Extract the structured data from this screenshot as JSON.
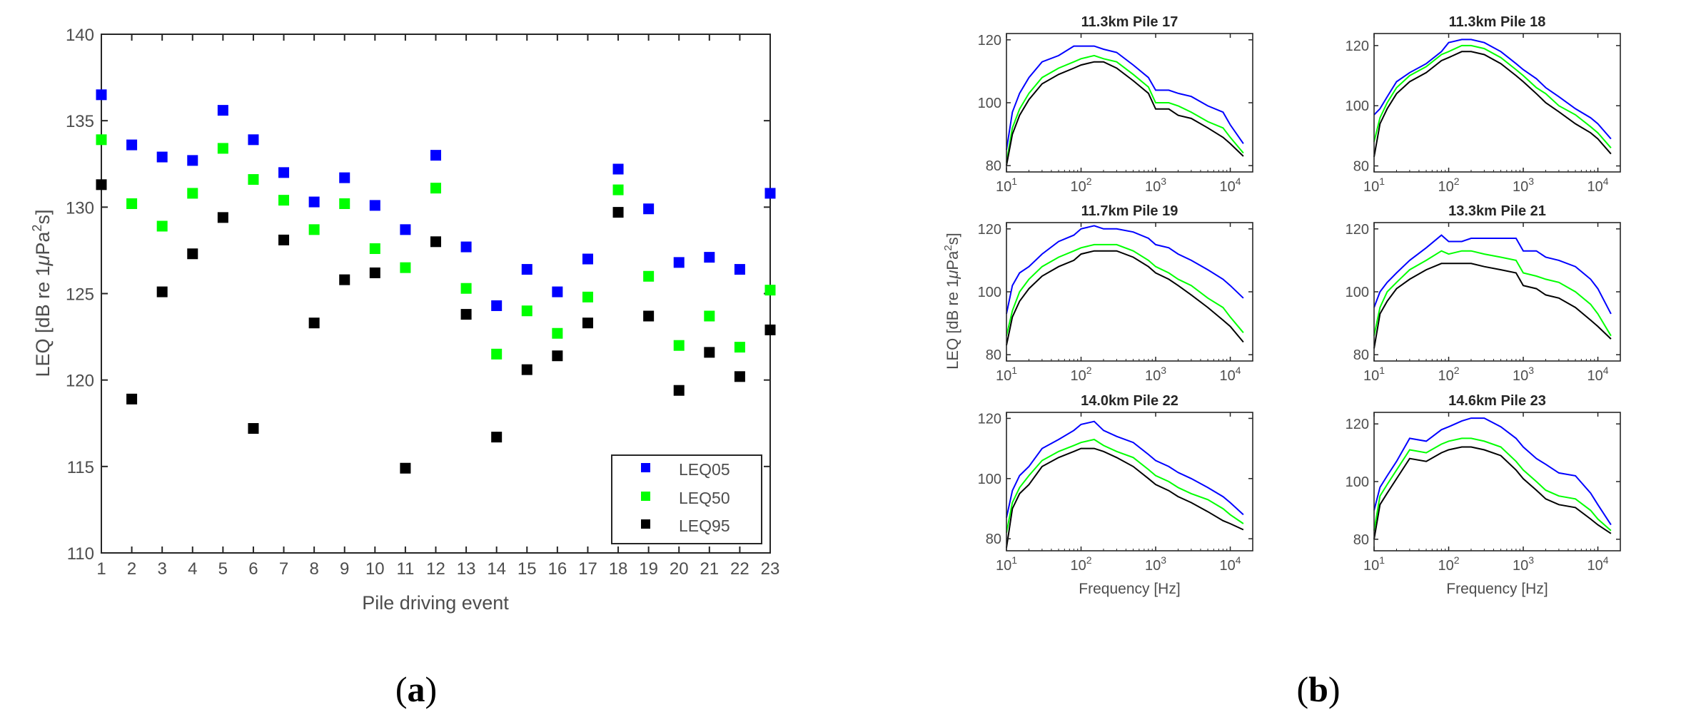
{
  "chart_data": [
    {
      "id": "a",
      "type": "scatter",
      "panel_label": "(a)",
      "panel_letter": "a",
      "xlabel": "Pile driving event",
      "ylabel": "LEQ [dB re 1μPa²s]",
      "ylabel_parts": {
        "pre": "LEQ [dB re 1",
        "mu": "μ",
        "mid": "Pa",
        "sup": "2",
        "post": "s]"
      },
      "xlim": [
        1,
        23
      ],
      "ylim": [
        110,
        140
      ],
      "xticks": [
        1,
        2,
        3,
        4,
        5,
        6,
        7,
        8,
        9,
        10,
        11,
        12,
        13,
        14,
        15,
        16,
        17,
        18,
        19,
        20,
        21,
        22,
        23
      ],
      "yticks": [
        110,
        115,
        120,
        125,
        130,
        135,
        140
      ],
      "legend_position": "bottom-right",
      "series": [
        {
          "name": "LEQ05",
          "color": "#0000ff",
          "x": [
            1,
            2,
            3,
            4,
            5,
            6,
            7,
            8,
            9,
            10,
            11,
            12,
            13,
            14,
            15,
            16,
            17,
            18,
            19,
            20,
            21,
            22,
            23
          ],
          "y": [
            136.5,
            133.6,
            132.9,
            132.7,
            135.6,
            133.9,
            132.0,
            130.3,
            131.7,
            130.1,
            128.7,
            133.0,
            127.7,
            124.3,
            126.4,
            125.1,
            127.0,
            132.2,
            129.9,
            126.8,
            127.1,
            126.4,
            130.8
          ]
        },
        {
          "name": "LEQ50",
          "color": "#00ff00",
          "x": [
            1,
            2,
            3,
            4,
            5,
            6,
            7,
            8,
            9,
            10,
            11,
            12,
            13,
            14,
            15,
            16,
            17,
            18,
            19,
            20,
            21,
            22,
            23
          ],
          "y": [
            133.9,
            130.2,
            128.9,
            130.8,
            133.4,
            131.6,
            130.4,
            128.7,
            130.2,
            127.6,
            126.5,
            131.1,
            125.3,
            121.5,
            124.0,
            122.7,
            124.8,
            131.0,
            126.0,
            122.0,
            123.7,
            121.9,
            125.2
          ]
        },
        {
          "name": "LEQ95",
          "color": "#000000",
          "x": [
            1,
            2,
            3,
            4,
            5,
            6,
            7,
            8,
            9,
            10,
            11,
            12,
            13,
            14,
            15,
            16,
            17,
            18,
            19,
            20,
            21,
            22,
            23
          ],
          "y": [
            131.3,
            118.9,
            125.1,
            127.3,
            129.4,
            117.2,
            128.1,
            123.3,
            125.8,
            126.2,
            114.9,
            128.0,
            123.8,
            116.7,
            120.6,
            121.4,
            123.3,
            129.7,
            123.7,
            119.4,
            121.6,
            120.2,
            122.9
          ]
        }
      ]
    },
    {
      "id": "b",
      "type": "line",
      "panel_label": "(b)",
      "panel_letter": "b",
      "xlabel": "Frequency [Hz]",
      "ylabel": "LEQ [dB re 1μPa²s]",
      "ylabel_parts": {
        "pre": "LEQ [dB re 1",
        "mu": "μ",
        "mid": "Pa",
        "sup": "2",
        "post": "s]"
      },
      "xscale": "log",
      "xlim": [
        10,
        20000
      ],
      "xticks": [
        {
          "v": 10,
          "b": "10",
          "e": "1"
        },
        {
          "v": 100,
          "b": "10",
          "e": "2"
        },
        {
          "v": 1000,
          "b": "10",
          "e": "3"
        },
        {
          "v": 10000,
          "b": "10",
          "e": "4"
        }
      ],
      "yticks": [
        80,
        100,
        120
      ],
      "series_colors": {
        "LEQ05": "#0000ff",
        "LEQ50": "#00ff00",
        "LEQ95": "#000000"
      },
      "subplots": [
        {
          "title": "11.3km Pile 17",
          "ylim": [
            78,
            122
          ],
          "freqs": [
            10,
            12,
            15,
            20,
            30,
            50,
            80,
            100,
            150,
            200,
            300,
            500,
            800,
            1000,
            1500,
            2000,
            3000,
            5000,
            8000,
            10000,
            15000
          ],
          "LEQ05": [
            85,
            97,
            103,
            108,
            113,
            115,
            118,
            118,
            118,
            117,
            116,
            112,
            108,
            104,
            104,
            103,
            102,
            99,
            97,
            93,
            87
          ],
          "LEQ50": [
            81,
            92,
            98,
            103,
            108,
            111,
            113,
            114,
            115,
            114,
            113,
            109,
            105,
            100,
            100,
            99,
            97,
            94,
            92,
            89,
            84
          ],
          "LEQ95": [
            80,
            90,
            96,
            101,
            106,
            109,
            111,
            112,
            113,
            113,
            111,
            107,
            103,
            98,
            98,
            96,
            95,
            92,
            89,
            87,
            83
          ]
        },
        {
          "title": "11.3km Pile 18",
          "ylim": [
            78,
            124
          ],
          "freqs": [
            10,
            12,
            15,
            20,
            30,
            50,
            80,
            100,
            150,
            200,
            300,
            500,
            800,
            1000,
            1500,
            2000,
            3000,
            5000,
            8000,
            10000,
            15000
          ],
          "LEQ05": [
            97,
            99,
            103,
            108,
            111,
            114,
            118,
            121,
            122,
            122,
            121,
            118,
            114,
            112,
            109,
            106,
            103,
            99,
            96,
            94,
            89
          ],
          "LEQ50": [
            88,
            96,
            101,
            106,
            110,
            113,
            117,
            118,
            120,
            120,
            119,
            116,
            112,
            110,
            106,
            104,
            100,
            97,
            93,
            91,
            86
          ],
          "LEQ95": [
            83,
            94,
            99,
            104,
            108,
            111,
            115,
            116,
            118,
            118,
            117,
            114,
            110,
            108,
            104,
            101,
            98,
            94,
            91,
            89,
            84
          ]
        },
        {
          "title": "11.7km Pile 19",
          "ylim": [
            78,
            122
          ],
          "freqs": [
            10,
            12,
            15,
            20,
            30,
            50,
            80,
            100,
            150,
            200,
            300,
            500,
            800,
            1000,
            1500,
            2000,
            3000,
            5000,
            8000,
            10000,
            15000
          ],
          "LEQ05": [
            93,
            102,
            106,
            108,
            112,
            116,
            118,
            120,
            121,
            120,
            120,
            119,
            117,
            115,
            114,
            112,
            110,
            107,
            104,
            102,
            98
          ],
          "LEQ50": [
            86,
            94,
            100,
            104,
            108,
            111,
            113,
            114,
            115,
            115,
            115,
            113,
            110,
            108,
            106,
            104,
            102,
            98,
            95,
            92,
            87
          ],
          "LEQ95": [
            83,
            92,
            97,
            101,
            105,
            108,
            110,
            112,
            113,
            113,
            113,
            111,
            108,
            106,
            104,
            102,
            99,
            95,
            91,
            89,
            84
          ]
        },
        {
          "title": "13.3km Pile 21",
          "ylim": [
            78,
            122
          ],
          "freqs": [
            10,
            12,
            15,
            20,
            30,
            50,
            80,
            100,
            150,
            200,
            300,
            500,
            800,
            1000,
            1500,
            2000,
            3000,
            5000,
            8000,
            10000,
            15000
          ],
          "LEQ05": [
            95,
            100,
            103,
            106,
            110,
            114,
            118,
            116,
            116,
            117,
            117,
            117,
            117,
            113,
            113,
            111,
            110,
            108,
            104,
            101,
            93
          ],
          "LEQ50": [
            86,
            95,
            100,
            103,
            107,
            110,
            113,
            112,
            113,
            113,
            112,
            111,
            110,
            106,
            105,
            104,
            103,
            100,
            96,
            93,
            86
          ],
          "LEQ95": [
            82,
            93,
            97,
            101,
            104,
            107,
            109,
            109,
            109,
            109,
            108,
            107,
            106,
            102,
            101,
            99,
            98,
            95,
            91,
            89,
            85
          ]
        },
        {
          "title": "14.0km Pile 22",
          "ylim": [
            76,
            122
          ],
          "freqs": [
            10,
            12,
            15,
            20,
            30,
            50,
            80,
            100,
            150,
            200,
            300,
            500,
            800,
            1000,
            1500,
            2000,
            3000,
            5000,
            8000,
            10000,
            15000
          ],
          "LEQ05": [
            87,
            96,
            101,
            104,
            110,
            113,
            116,
            118,
            119,
            116,
            114,
            112,
            108,
            106,
            104,
            102,
            100,
            97,
            94,
            92,
            88
          ],
          "LEQ50": [
            82,
            92,
            97,
            101,
            106,
            109,
            111,
            112,
            113,
            111,
            109,
            107,
            103,
            101,
            99,
            97,
            95,
            93,
            90,
            88,
            85
          ],
          "LEQ95": [
            77,
            90,
            95,
            98,
            104,
            107,
            109,
            110,
            110,
            109,
            107,
            104,
            100,
            98,
            96,
            94,
            92,
            89,
            86,
            85,
            83
          ]
        },
        {
          "title": "14.6km Pile 23",
          "ylim": [
            76,
            124
          ],
          "freqs": [
            10,
            12,
            15,
            20,
            30,
            50,
            80,
            100,
            150,
            200,
            300,
            500,
            800,
            1000,
            1500,
            2000,
            3000,
            5000,
            8000,
            10000,
            15000
          ],
          "LEQ05": [
            90,
            98,
            102,
            107,
            115,
            114,
            118,
            119,
            121,
            122,
            122,
            119,
            115,
            112,
            108,
            106,
            103,
            102,
            96,
            92,
            85
          ],
          "LEQ50": [
            83,
            95,
            99,
            104,
            111,
            110,
            113,
            114,
            115,
            115,
            114,
            112,
            107,
            104,
            100,
            97,
            95,
            94,
            90,
            87,
            83
          ],
          "LEQ95": [
            80,
            92,
            96,
            101,
            108,
            107,
            110,
            111,
            112,
            112,
            111,
            109,
            104,
            101,
            97,
            94,
            92,
            91,
            87,
            85,
            82
          ]
        }
      ]
    }
  ]
}
